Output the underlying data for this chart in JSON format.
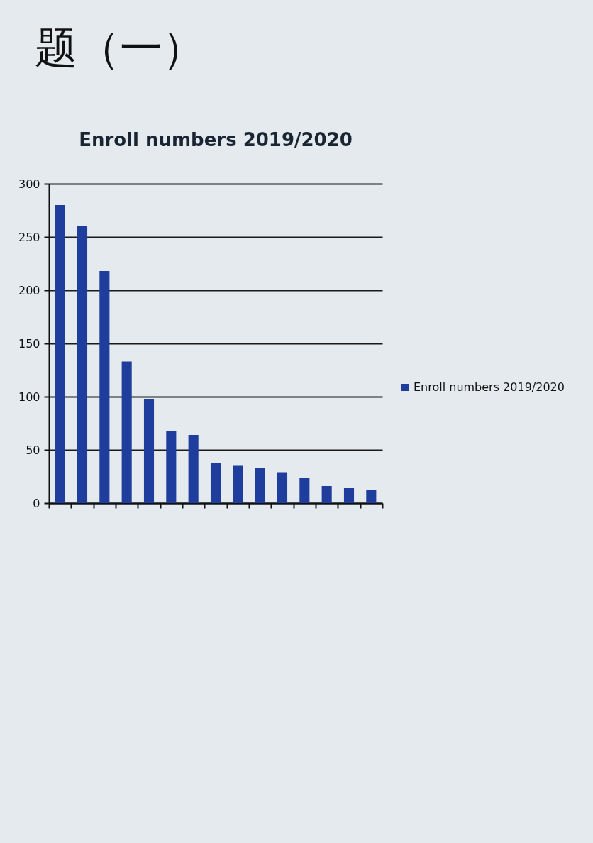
{
  "chart_data": {
    "type": "bar",
    "title": "Enroll numbers 2019/2020",
    "annotations": [
      "题（一）"
    ],
    "categories": [
      null,
      null,
      null,
      null,
      null,
      null,
      null,
      null,
      null,
      null,
      null,
      null,
      null,
      null,
      null
    ],
    "series": [
      {
        "name": "Enroll numbers 2019/2020",
        "color": "#1f3d9c",
        "values": [
          280,
          260,
          218,
          133,
          98,
          68,
          64,
          38,
          35,
          33,
          29,
          24,
          16,
          14,
          12
        ]
      }
    ],
    "ylim": [
      0,
      300
    ],
    "yticks": [
      0,
      50,
      100,
      150,
      200,
      250,
      300
    ],
    "grid": "y",
    "legend": "right",
    "tick_labels": "y"
  }
}
